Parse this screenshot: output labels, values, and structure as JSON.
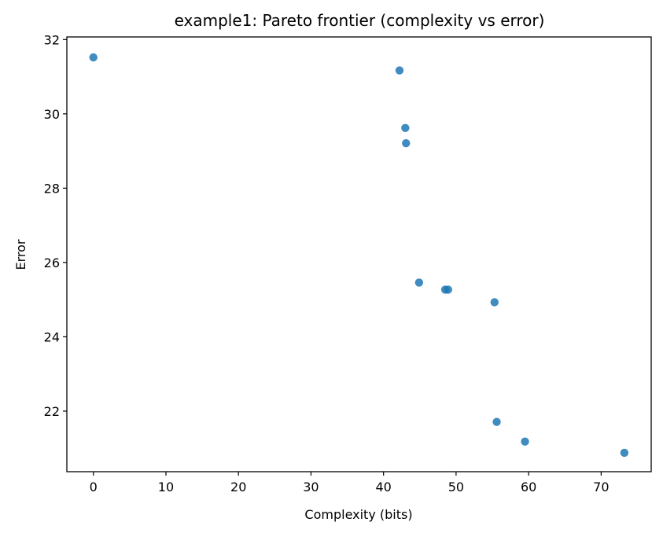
{
  "chart_data": {
    "type": "scatter",
    "title": "example1: Pareto frontier (complexity vs error)",
    "xlabel": "Complexity (bits)",
    "ylabel": "Error",
    "xlim": [
      -3.66,
      76.9
    ],
    "ylim": [
      20.37,
      32.07
    ],
    "xticks": [
      0,
      10,
      20,
      30,
      40,
      50,
      60,
      70
    ],
    "yticks": [
      22,
      24,
      26,
      28,
      30,
      32
    ],
    "grid": false,
    "marker_color": "#1f77b4",
    "points": [
      {
        "x": 0.0,
        "y": 31.52
      },
      {
        "x": 42.2,
        "y": 31.17
      },
      {
        "x": 43.0,
        "y": 29.62
      },
      {
        "x": 43.1,
        "y": 29.21
      },
      {
        "x": 44.9,
        "y": 25.46
      },
      {
        "x": 48.5,
        "y": 25.27
      },
      {
        "x": 48.9,
        "y": 25.27
      },
      {
        "x": 55.3,
        "y": 24.93
      },
      {
        "x": 55.6,
        "y": 21.71
      },
      {
        "x": 59.5,
        "y": 21.18
      },
      {
        "x": 73.2,
        "y": 20.88
      }
    ]
  }
}
